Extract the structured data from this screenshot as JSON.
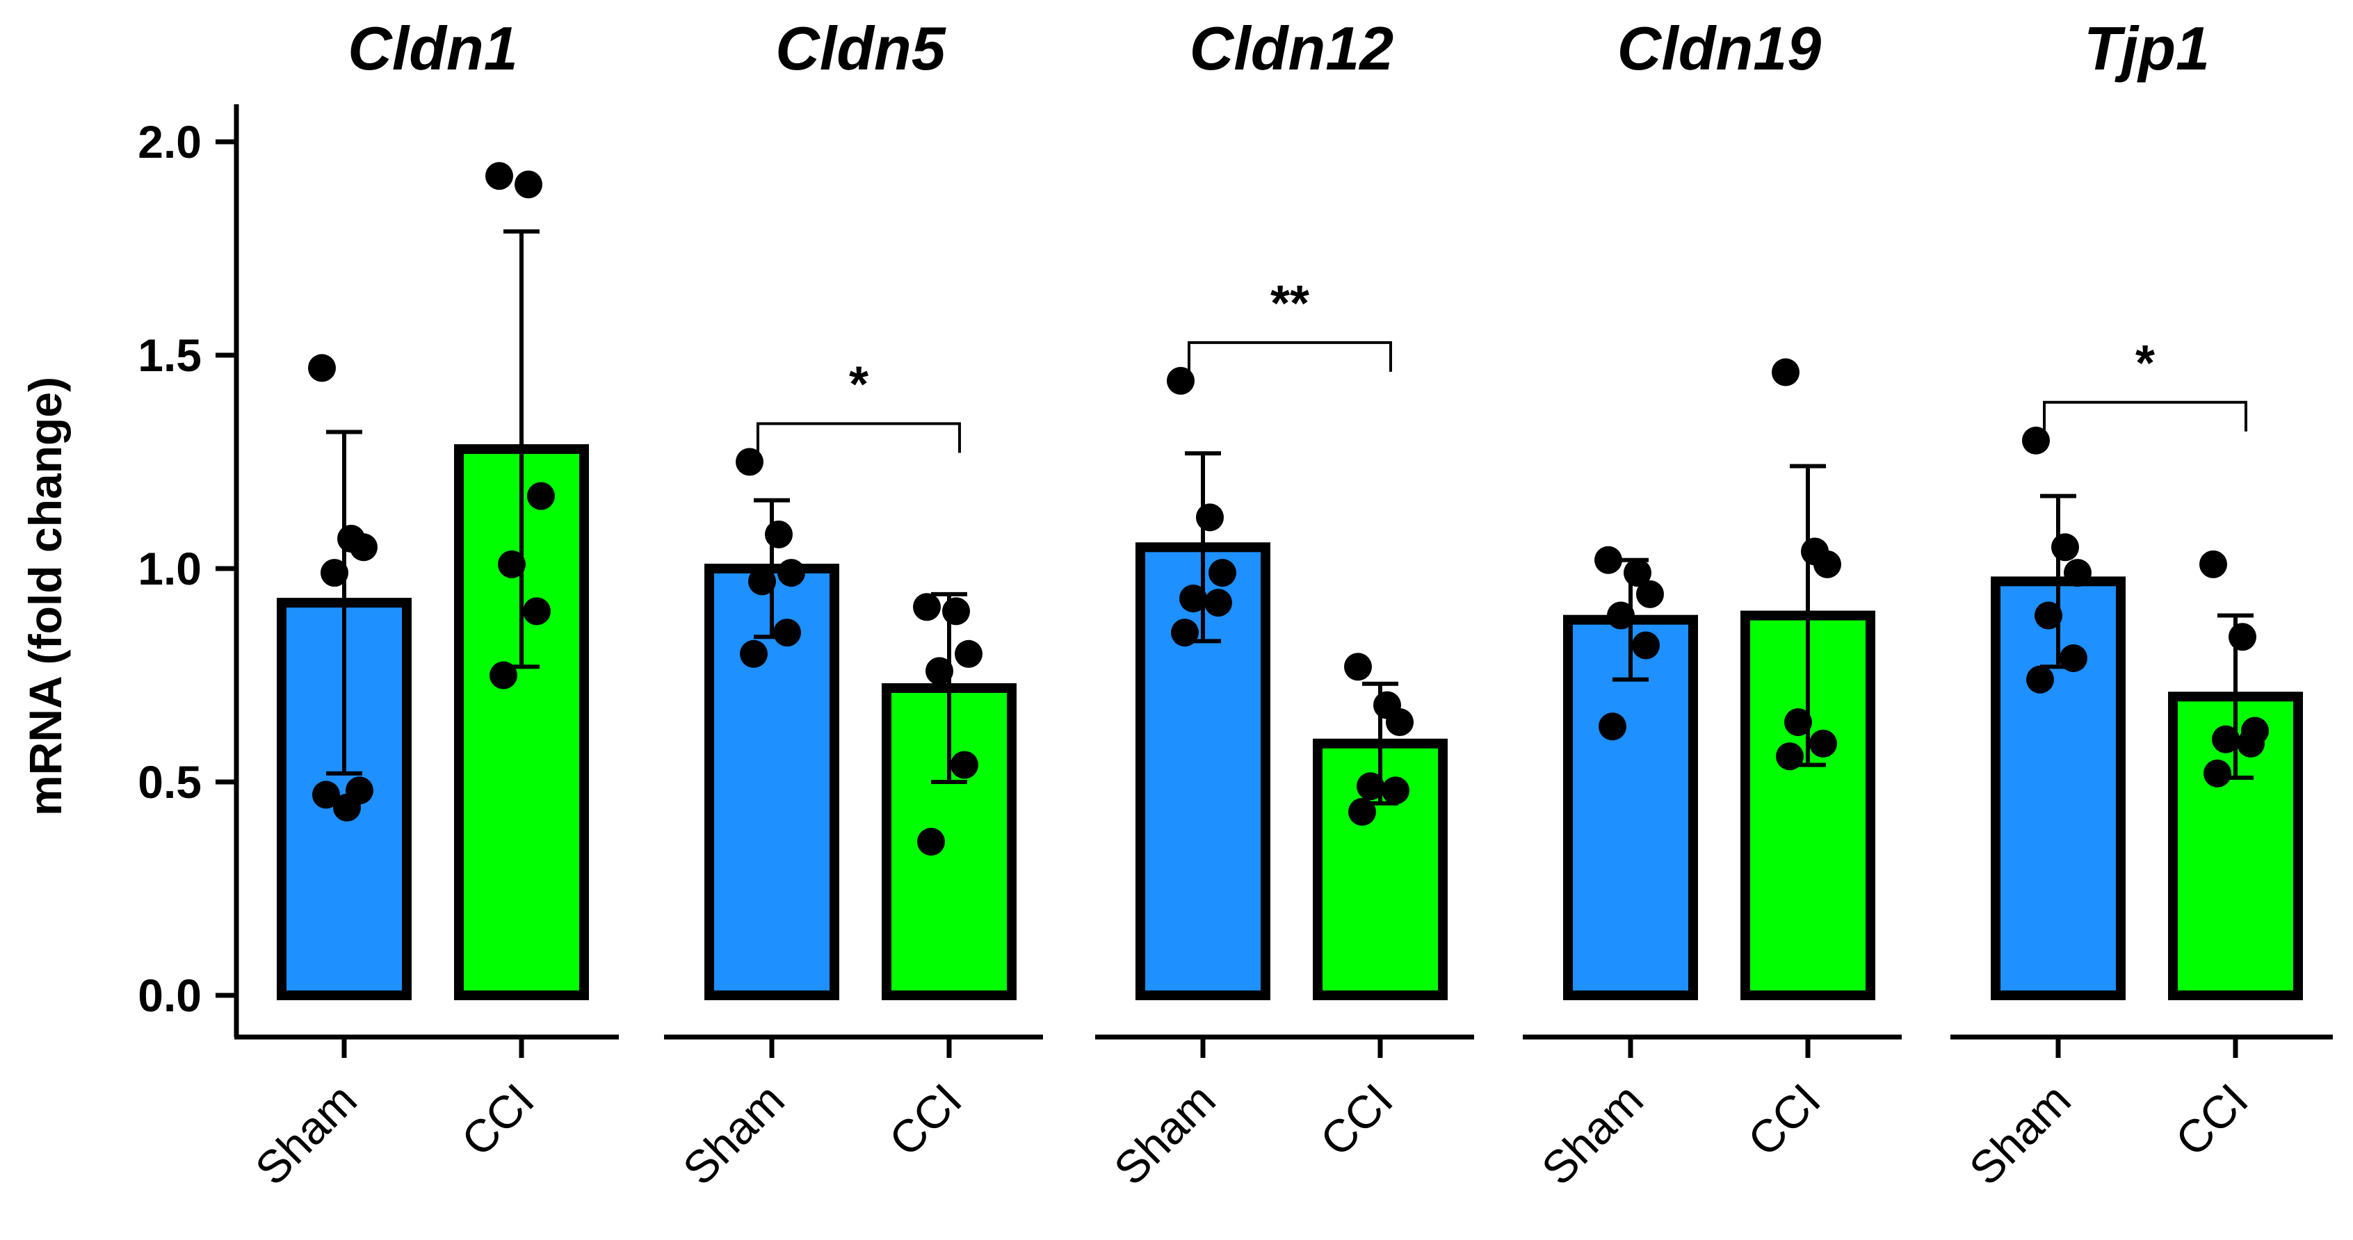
{
  "chart_data": {
    "type": "bar",
    "ylabel": "mRNA (fold change)",
    "ylim": [
      0,
      2.0
    ],
    "yticks": [
      "0.0",
      "0.5",
      "1.0",
      "1.5",
      "2.0"
    ],
    "groups": [
      "Sham",
      "CCI"
    ],
    "colors": {
      "Sham": "#1E90FF",
      "CCI": "#00FF00",
      "border": "#000000",
      "point": "#000000"
    },
    "panels": [
      {
        "title": "Cldn1",
        "bars": [
          {
            "group": "Sham",
            "value": 0.92,
            "sd": 0.4,
            "points": [
              1.47,
              1.07,
              1.05,
              0.99,
              0.48,
              0.47,
              0.44
            ]
          },
          {
            "group": "CCI",
            "value": 1.28,
            "sd": 0.51,
            "points": [
              1.92,
              1.9,
              1.17,
              1.01,
              0.9,
              0.75
            ]
          }
        ],
        "significance": ""
      },
      {
        "title": "Cldn5",
        "bars": [
          {
            "group": "Sham",
            "value": 1.0,
            "sd": 0.16,
            "points": [
              1.25,
              1.08,
              0.99,
              0.97,
              0.85,
              0.8
            ]
          },
          {
            "group": "CCI",
            "value": 0.72,
            "sd": 0.22,
            "points": [
              0.91,
              0.9,
              0.8,
              0.76,
              0.54,
              0.36
            ]
          }
        ],
        "significance": "*"
      },
      {
        "title": "Cldn12",
        "bars": [
          {
            "group": "Sham",
            "value": 1.05,
            "sd": 0.22,
            "points": [
              1.44,
              1.12,
              0.99,
              0.93,
              0.92,
              0.85
            ]
          },
          {
            "group": "CCI",
            "value": 0.59,
            "sd": 0.14,
            "points": [
              0.77,
              0.68,
              0.64,
              0.49,
              0.48,
              0.43
            ]
          }
        ],
        "significance": "**"
      },
      {
        "title": "Cldn19",
        "bars": [
          {
            "group": "Sham",
            "value": 0.88,
            "sd": 0.14,
            "points": [
              1.02,
              0.99,
              0.94,
              0.89,
              0.82,
              0.63
            ]
          },
          {
            "group": "CCI",
            "value": 0.89,
            "sd": 0.35,
            "points": [
              1.46,
              1.04,
              1.01,
              0.64,
              0.59,
              0.56
            ]
          }
        ],
        "significance": ""
      },
      {
        "title": "Tjp1",
        "bars": [
          {
            "group": "Sham",
            "value": 0.97,
            "sd": 0.2,
            "points": [
              1.3,
              1.05,
              0.99,
              0.89,
              0.79,
              0.74
            ]
          },
          {
            "group": "CCI",
            "value": 0.7,
            "sd": 0.19,
            "points": [
              1.01,
              0.84,
              0.62,
              0.6,
              0.59,
              0.52
            ]
          }
        ],
        "significance": "*"
      }
    ]
  }
}
